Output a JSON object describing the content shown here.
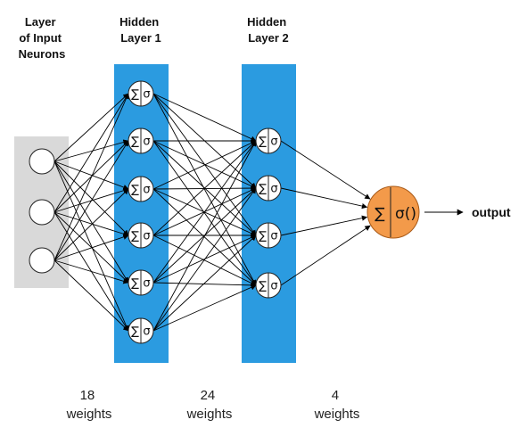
{
  "colors": {
    "input_band": "#d9d9d9",
    "hidden_band": "#2b9be0",
    "output_node": "#f39a4a",
    "output_node_border": "#a85a18",
    "node_fill": "#ffffff",
    "line": "#000000"
  },
  "layers": {
    "input": {
      "title_lines": [
        "Layer",
        "of Input",
        "Neurons"
      ],
      "node_count": 3
    },
    "hidden1": {
      "title_lines": [
        "Hidden",
        "Layer 1"
      ],
      "node_count": 6,
      "node_symbol_sum": "∑",
      "node_symbol_act": "σ"
    },
    "hidden2": {
      "title_lines": [
        "Hidden",
        "Layer 2"
      ],
      "node_count": 4,
      "node_symbol_sum": "∑",
      "node_symbol_act": "σ"
    },
    "output": {
      "node_symbol_sum": "∑",
      "node_symbol_act": "σ()",
      "label": "output"
    }
  },
  "weights": [
    {
      "lines": [
        "18",
        "weights"
      ]
    },
    {
      "lines": [
        "24",
        "weights"
      ]
    },
    {
      "lines": [
        "4",
        "weights"
      ]
    }
  ]
}
